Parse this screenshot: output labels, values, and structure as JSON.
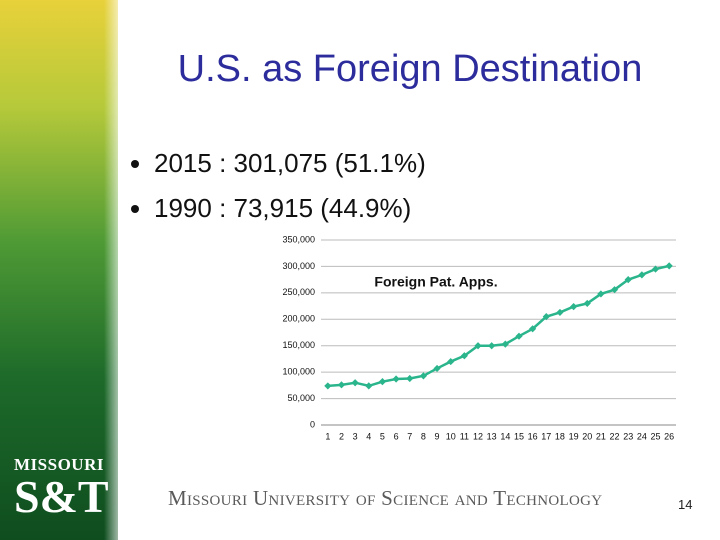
{
  "slide": {
    "title": "U.S. as Foreign Destination",
    "bullets": [
      "2015 : 301,075  (51.1%)",
      "1990 : 73,915  (44.9%)"
    ],
    "logo_top": "MISSOURI",
    "logo_bottom": "S&T",
    "footer": "Missouri University of Science and Technology",
    "page_number": "14"
  },
  "chart_data": {
    "type": "line",
    "title": "Foreign Pat. Apps.",
    "categories": [
      "1",
      "2",
      "3",
      "4",
      "5",
      "6",
      "7",
      "8",
      "9",
      "10",
      "11",
      "12",
      "13",
      "14",
      "15",
      "16",
      "17",
      "18",
      "19",
      "20",
      "21",
      "22",
      "23",
      "24",
      "25",
      "26"
    ],
    "series": [
      {
        "name": "Foreign Pat. Apps.",
        "color": "#2bb58c",
        "values": [
          73915,
          76000,
          80000,
          74000,
          82000,
          87000,
          88000,
          93000,
          107000,
          120000,
          131000,
          150000,
          150000,
          153000,
          168000,
          182000,
          205000,
          213000,
          224000,
          230000,
          248000,
          256000,
          275000,
          284000,
          295000,
          301075
        ]
      }
    ],
    "ylim": [
      0,
      350000
    ],
    "yticks": [
      0,
      {
        "value": 50000,
        "label": "50,000"
      },
      {
        "value": 100000,
        "label": "100,000"
      },
      {
        "value": 150000,
        "label": "150,000"
      },
      {
        "value": 200000,
        "label": "200,000"
      },
      {
        "value": 250000,
        "label": "250,000"
      },
      {
        "value": 300000,
        "label": "300,000"
      },
      {
        "value": 350000,
        "label": "350,000"
      }
    ],
    "grid": true
  }
}
